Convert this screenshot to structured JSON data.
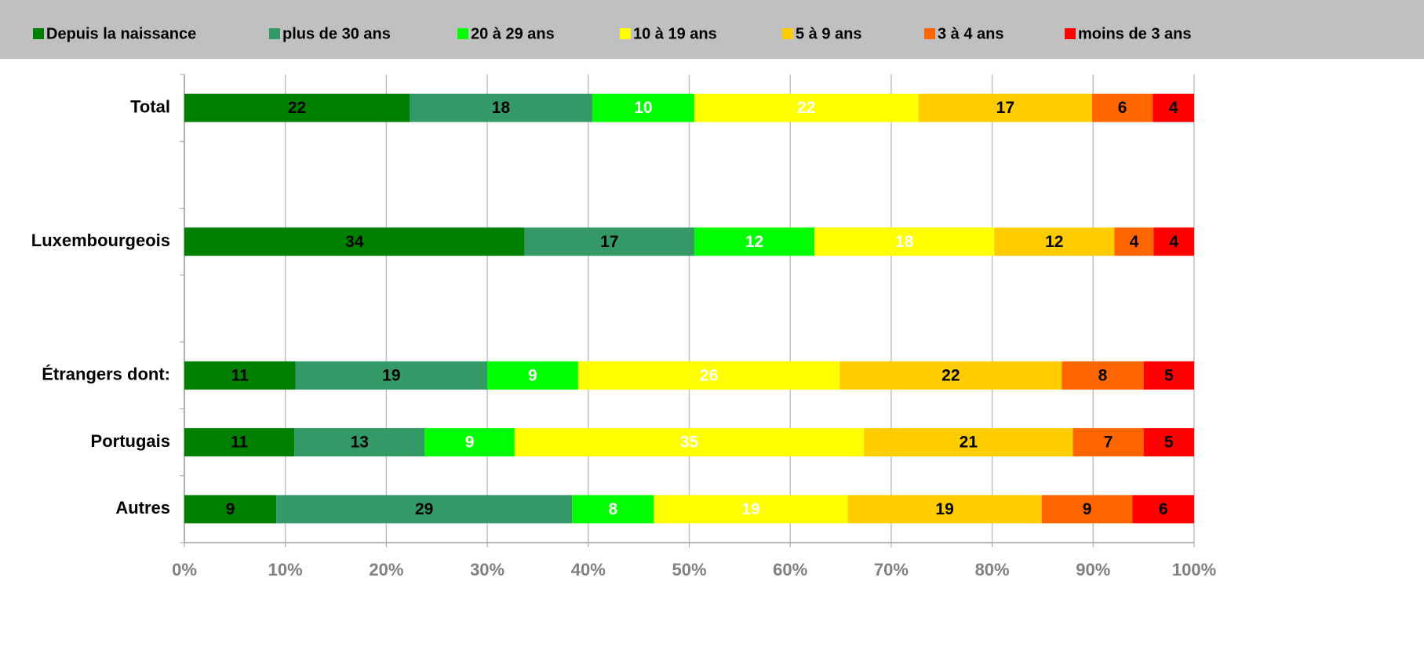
{
  "chart_data": {
    "type": "stacked_barh",
    "categories": [
      "Total",
      null,
      "Luxembourgeois",
      null,
      "Étrangers dont:",
      "Portugais",
      "Autres"
    ],
    "series": [
      {
        "name": "Depuis la naissance",
        "color": "#008000",
        "label_color": "#000000",
        "values": [
          22.3,
          null,
          33.7,
          null,
          11.0,
          10.9,
          9.1
        ],
        "value_labels": [
          "22",
          null,
          "34",
          null,
          "11",
          "11",
          "9"
        ]
      },
      {
        "name": "plus de 30 ans",
        "color": "#339966",
        "label_color": "#000000",
        "values": [
          18.1,
          null,
          16.8,
          null,
          19.0,
          12.9,
          29.3
        ],
        "value_labels": [
          "18",
          null,
          "17",
          null,
          "19",
          "13",
          "29"
        ]
      },
      {
        "name": "20 à 29 ans",
        "color": "#00ff00",
        "label_color": "#ffffff",
        "values": [
          10.1,
          null,
          11.9,
          null,
          9.0,
          8.9,
          8.1
        ],
        "value_labels": [
          "10",
          null,
          "12",
          null,
          "9",
          "9",
          "8"
        ]
      },
      {
        "name": "10 à 19 ans",
        "color": "#ffff00",
        "label_color": "#ffffff",
        "values": [
          22.2,
          null,
          17.8,
          null,
          25.9,
          34.6,
          19.2
        ],
        "value_labels": [
          "22",
          null,
          "18",
          null,
          "26",
          "35",
          "19"
        ]
      },
      {
        "name": "5 à 9 ans",
        "color": "#ffcc00",
        "label_color": "#000000",
        "values": [
          17.2,
          null,
          11.9,
          null,
          22.0,
          20.7,
          19.2
        ],
        "value_labels": [
          "17",
          null,
          "12",
          null,
          "22",
          "21",
          "19"
        ]
      },
      {
        "name": "3 à 4 ans",
        "color": "#ff6600",
        "label_color": "#000000",
        "values": [
          6.0,
          null,
          3.9,
          null,
          8.1,
          7.0,
          9.0
        ],
        "value_labels": [
          "6",
          null,
          "4",
          null,
          "8",
          "7",
          "9"
        ]
      },
      {
        "name": "moins de 3 ans",
        "color": "#ff0000",
        "label_color": "#000000",
        "values": [
          4.1,
          null,
          4.0,
          null,
          5.0,
          5.0,
          6.1
        ],
        "value_labels": [
          "4",
          null,
          "4",
          null,
          "5",
          "5",
          "6"
        ]
      }
    ],
    "xlim": [
      0,
      100
    ],
    "xticks": [
      {
        "value": 0,
        "label": "0%"
      },
      {
        "value": 10,
        "label": "10%"
      },
      {
        "value": 20,
        "label": "20%"
      },
      {
        "value": 30,
        "label": "30%"
      },
      {
        "value": 40,
        "label": "40%"
      },
      {
        "value": 50,
        "label": "50%"
      },
      {
        "value": 60,
        "label": "60%"
      },
      {
        "value": 70,
        "label": "70%"
      },
      {
        "value": 80,
        "label": "80%"
      },
      {
        "value": 90,
        "label": "90%"
      },
      {
        "value": 100,
        "label": "100%"
      }
    ],
    "grid": true,
    "legend": "top"
  }
}
